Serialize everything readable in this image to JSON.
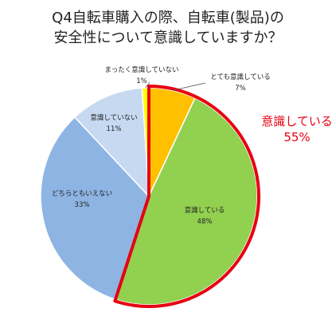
{
  "title": {
    "line1": "Q4自転車購入の際、自転車(製品)の",
    "line2": "安全性について意識していますか？"
  },
  "callout": {
    "label": "意識している",
    "value": "55%"
  },
  "colors": {
    "highlight_border": "#e60012",
    "callout_text": "#e60012"
  },
  "chart_data": {
    "type": "pie",
    "start": "12 o'clock",
    "direction": "clockwise",
    "slices": [
      {
        "label": "とても意識している",
        "value": 7,
        "display": "7%",
        "color": "#ffc000"
      },
      {
        "label": "意識している",
        "value": 48,
        "display": "48%",
        "color": "#92d050"
      },
      {
        "label": "どちらともいえない",
        "value": 33,
        "display": "33%",
        "color": "#8eb4e3"
      },
      {
        "label": "意識していない",
        "value": 11,
        "display": "11%",
        "color": "#c6d9f1"
      },
      {
        "label": "まったく意識していない",
        "value": 1,
        "display": "1%",
        "color": "#ffff00"
      }
    ],
    "highlight": {
      "slices": [
        "とても意識している",
        "意識している"
      ],
      "label": "意識している",
      "value": "55%"
    }
  }
}
